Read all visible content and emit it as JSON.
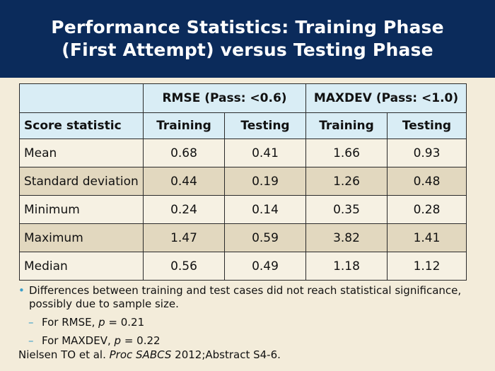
{
  "title": {
    "line1": "Performance Statistics: Training Phase",
    "line2": "(First Attempt) versus Testing Phase"
  },
  "table": {
    "group_headers": [
      "RMSE (Pass: <0.6)",
      "MAXDEV (Pass: <1.0)"
    ],
    "row_header": "Score statistic",
    "sub_headers": [
      "Training",
      "Testing",
      "Training",
      "Testing"
    ],
    "rows": [
      {
        "label": "Mean",
        "values": [
          "0.68",
          "0.41",
          "1.66",
          "0.93"
        ]
      },
      {
        "label": "Standard deviation",
        "values": [
          "0.44",
          "0.19",
          "1.26",
          "0.48"
        ]
      },
      {
        "label": "Minimum",
        "values": [
          "0.24",
          "0.14",
          "0.35",
          "0.28"
        ]
      },
      {
        "label": "Maximum",
        "values": [
          "1.47",
          "0.59",
          "3.82",
          "1.41"
        ]
      },
      {
        "label": "Median",
        "values": [
          "0.56",
          "0.49",
          "1.18",
          "1.12"
        ]
      }
    ]
  },
  "notes": {
    "bullet_line1": "Differences between training and test cases did not reach statistical significance,",
    "bullet_line2": "possibly due to sample size.",
    "sub1_prefix": "For RMSE, ",
    "sub1_var": "p",
    "sub1_value": " = 0.21",
    "sub2_prefix": "For MAXDEV, ",
    "sub2_var": "p",
    "sub2_value": " = 0.22"
  },
  "citation": {
    "authors": "Nielsen TO et al. ",
    "journal": "Proc SABCS",
    "detail": " 2012;Abstract S4-6."
  },
  "colors": {
    "title_bg": "#0b2b5b",
    "header_bg": "#d9edf5",
    "row_light": "#f6f1e3",
    "row_dark": "#e2d8bf",
    "bullet": "#3a9ec9"
  }
}
